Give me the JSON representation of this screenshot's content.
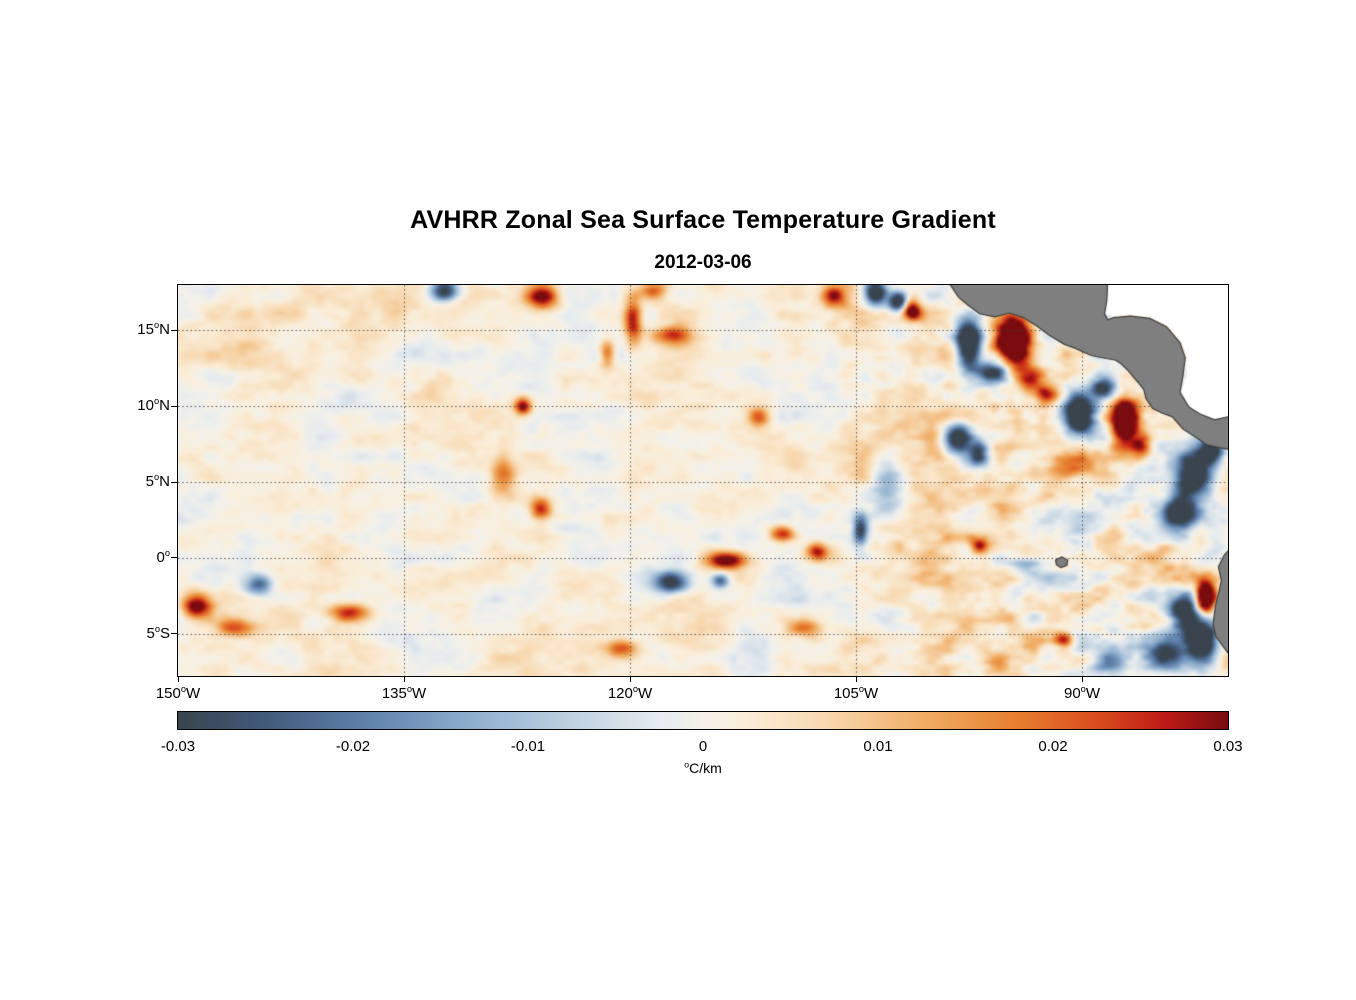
{
  "title": "AVHRR Zonal Sea Surface Temperature Gradient",
  "subtitle": "2012-03-06",
  "colorbar": {
    "ticks": [
      "-0.03",
      "-0.02",
      "-0.01",
      "0",
      "0.01",
      "0.02",
      "0.03"
    ],
    "unit_sup": "o",
    "unit_text": "C/km"
  },
  "chart_data": {
    "type": "heatmap",
    "title": "AVHRR Zonal Sea Surface Temperature Gradient",
    "subtitle": "2012-03-06",
    "units": "°C/km",
    "value_range": [
      -0.03,
      0.03
    ],
    "lon_range": [
      -150,
      -80.31
    ],
    "lat_range": [
      18,
      -7.8
    ],
    "x_ticks": [
      {
        "num": "150",
        "deg": "o",
        "hemi": "W",
        "lon": -150
      },
      {
        "num": "135",
        "deg": "o",
        "hemi": "W",
        "lon": -135
      },
      {
        "num": "120",
        "deg": "o",
        "hemi": "W",
        "lon": -120
      },
      {
        "num": "105",
        "deg": "o",
        "hemi": "W",
        "lon": -105
      },
      {
        "num": "90",
        "deg": "o",
        "hemi": "W",
        "lon": -90
      }
    ],
    "y_ticks": [
      {
        "num": "15",
        "deg": "o",
        "hemi": "N",
        "lat": 15
      },
      {
        "num": "10",
        "deg": "o",
        "hemi": "N",
        "lat": 10
      },
      {
        "num": "5",
        "deg": "o",
        "hemi": "N",
        "lat": 5
      },
      {
        "num": "0",
        "deg": "o",
        "hemi": "",
        "lat": 0
      },
      {
        "num": "5",
        "deg": "o",
        "hemi": "S",
        "lat": -5
      }
    ],
    "grid": "dotted",
    "grid_lons": [
      -135,
      -120,
      -105,
      -90
    ],
    "colorbar_ticks": [
      -0.03,
      -0.02,
      -0.01,
      0,
      0.01,
      0.02,
      0.03
    ],
    "colormap_stops": [
      [
        0.0,
        "#3a444e"
      ],
      [
        0.08,
        "#41597a"
      ],
      [
        0.18,
        "#5f82ab"
      ],
      [
        0.28,
        "#8fafcf"
      ],
      [
        0.38,
        "#c2d3e2"
      ],
      [
        0.46,
        "#e7ecef"
      ],
      [
        0.5,
        "#f4f1ea"
      ],
      [
        0.54,
        "#faeeda"
      ],
      [
        0.62,
        "#f7d7ae"
      ],
      [
        0.72,
        "#f0a95f"
      ],
      [
        0.8,
        "#e67e2e"
      ],
      [
        0.88,
        "#d84b1d"
      ],
      [
        0.94,
        "#bd1a16"
      ],
      [
        1.0,
        "#7a0c0f"
      ]
    ],
    "field": {
      "bias": 0.0018,
      "base_amp": 0.0068,
      "east_amp": 0.0085,
      "east_edges": [
        -113,
        -91
      ],
      "octaves": [
        [
          0.42,
          0.75,
          0.5,
          7
        ],
        [
          0.9,
          1.5,
          0.32,
          13
        ],
        [
          1.9,
          2.9,
          0.18,
          29
        ]
      ],
      "broad": [
        0.18,
        0.3,
        0.004,
        99
      ]
    },
    "features_format": "[lon_degE, lat_degN, radius_lon_deg, radius_lat_deg, peak_value_C_per_km]",
    "features": [
      [
        -132.3,
        17.6,
        0.9,
        0.7,
        -0.035
      ],
      [
        -125.8,
        17.2,
        1.1,
        0.8,
        0.03
      ],
      [
        -118.5,
        17.6,
        0.9,
        0.6,
        0.022
      ],
      [
        -119.8,
        15.6,
        0.6,
        1.7,
        0.028
      ],
      [
        -117.3,
        14.7,
        1.3,
        0.6,
        0.02
      ],
      [
        -121.5,
        13.5,
        0.5,
        0.9,
        0.022
      ],
      [
        -127.1,
        10.0,
        0.55,
        0.55,
        0.03
      ],
      [
        -128.4,
        5.6,
        0.8,
        1.4,
        0.018
      ],
      [
        -125.9,
        3.2,
        0.7,
        0.7,
        0.026
      ],
      [
        -113.5,
        -0.2,
        1.4,
        0.6,
        0.034
      ],
      [
        -114.0,
        -1.5,
        0.6,
        0.5,
        -0.026
      ],
      [
        -109.9,
        1.6,
        0.8,
        0.55,
        0.028
      ],
      [
        -117.3,
        -1.6,
        1.1,
        0.7,
        -0.034
      ],
      [
        -148.8,
        -3.2,
        1.0,
        0.8,
        0.034
      ],
      [
        -146.2,
        -4.6,
        1.3,
        0.6,
        0.02
      ],
      [
        -144.6,
        -1.8,
        0.9,
        0.7,
        -0.026
      ],
      [
        -138.7,
        -3.6,
        1.4,
        0.6,
        0.024
      ],
      [
        -120.6,
        -6.0,
        1.0,
        0.6,
        0.02
      ],
      [
        -108.5,
        -4.6,
        1.1,
        0.6,
        0.018
      ],
      [
        -111.5,
        9.3,
        0.7,
        0.6,
        0.02
      ],
      [
        -104.7,
        1.8,
        0.5,
        1.1,
        -0.03
      ],
      [
        -107.6,
        0.4,
        0.7,
        0.6,
        0.026
      ],
      [
        -103.0,
        5.0,
        1.0,
        2.2,
        -0.016
      ],
      [
        -106.5,
        17.3,
        0.8,
        0.7,
        0.028
      ],
      [
        -103.7,
        17.5,
        0.7,
        0.8,
        -0.045
      ],
      [
        -102.2,
        16.9,
        0.6,
        0.6,
        -0.04
      ],
      [
        -101.3,
        16.4,
        0.6,
        0.7,
        0.035
      ],
      [
        -94.5,
        14.3,
        1.1,
        1.5,
        0.06
      ],
      [
        -97.5,
        14.0,
        0.8,
        1.6,
        -0.05
      ],
      [
        -96.0,
        12.2,
        1.2,
        0.7,
        -0.04
      ],
      [
        -93.4,
        11.8,
        1.0,
        0.9,
        0.028
      ],
      [
        -89.3,
        15.3,
        0.8,
        0.8,
        -0.045
      ],
      [
        -86.6,
        14.3,
        0.6,
        0.7,
        -0.03
      ],
      [
        -85.3,
        13.5,
        0.55,
        0.9,
        0.032
      ],
      [
        -87.2,
        8.9,
        0.85,
        1.5,
        0.06
      ],
      [
        -90.2,
        9.6,
        1.0,
        1.5,
        -0.05
      ],
      [
        -88.6,
        11.2,
        0.8,
        0.6,
        -0.035
      ],
      [
        -92.3,
        10.8,
        0.8,
        0.7,
        0.024
      ],
      [
        -98.3,
        7.8,
        0.9,
        1.1,
        -0.04
      ],
      [
        -96.9,
        6.7,
        0.75,
        0.85,
        -0.035
      ],
      [
        -90.8,
        5.8,
        1.6,
        0.9,
        0.022
      ],
      [
        -86.0,
        7.4,
        0.7,
        0.9,
        0.028
      ],
      [
        -82.5,
        5.5,
        1.3,
        1.6,
        -0.05
      ],
      [
        -83.6,
        3.0,
        1.2,
        1.4,
        -0.038
      ],
      [
        -81.4,
        7.1,
        0.8,
        0.8,
        -0.04
      ],
      [
        -81.8,
        -2.6,
        0.65,
        1.0,
        0.062
      ],
      [
        -83.2,
        -3.4,
        1.0,
        1.2,
        -0.045
      ],
      [
        -82.0,
        -5.5,
        1.0,
        1.4,
        -0.05
      ],
      [
        -84.4,
        -6.4,
        1.2,
        0.9,
        -0.03
      ],
      [
        -88.0,
        -6.8,
        1.0,
        0.9,
        -0.028
      ],
      [
        -91.2,
        -5.4,
        0.7,
        0.5,
        0.026
      ],
      [
        -93.6,
        -0.4,
        1.3,
        0.5,
        -0.016
      ],
      [
        -96.8,
        0.8,
        0.6,
        0.5,
        0.024
      ]
    ],
    "land_color": "#7f7f7f",
    "coast_color": "#404040",
    "nodata_color": "#ffffff",
    "land_polygons": [
      [
        [
          -98.8,
          18.1
        ],
        [
          -98.2,
          17.2
        ],
        [
          -97.6,
          16.7
        ],
        [
          -96.8,
          16.1
        ],
        [
          -95.8,
          15.9
        ],
        [
          -94.8,
          16.15
        ],
        [
          -93.9,
          15.85
        ],
        [
          -93.0,
          15.3
        ],
        [
          -92.2,
          14.7
        ],
        [
          -91.2,
          14.1
        ],
        [
          -90.4,
          13.8
        ],
        [
          -89.4,
          13.35
        ],
        [
          -88.4,
          13.15
        ],
        [
          -87.8,
          13.05
        ],
        [
          -87.4,
          12.8
        ],
        [
          -86.9,
          12.3
        ],
        [
          -86.3,
          11.6
        ],
        [
          -85.9,
          11.1
        ],
        [
          -85.75,
          10.5
        ],
        [
          -85.3,
          9.85
        ],
        [
          -84.7,
          9.55
        ],
        [
          -84.0,
          9.3
        ],
        [
          -83.3,
          8.5
        ],
        [
          -82.6,
          8.05
        ],
        [
          -81.7,
          7.45
        ],
        [
          -80.8,
          7.25
        ],
        [
          -79.9,
          7.1
        ],
        [
          -79.9,
          9.4
        ],
        [
          -81.2,
          9.1
        ],
        [
          -82.2,
          9.5
        ],
        [
          -82.9,
          9.95
        ],
        [
          -83.5,
          10.9
        ],
        [
          -83.3,
          12.0
        ],
        [
          -83.15,
          13.2
        ],
        [
          -83.5,
          14.2
        ],
        [
          -84.4,
          15.25
        ],
        [
          -85.5,
          15.8
        ],
        [
          -86.8,
          15.95
        ],
        [
          -87.9,
          15.85
        ],
        [
          -88.3,
          15.7
        ],
        [
          -88.5,
          16.1
        ],
        [
          -88.35,
          17.0
        ],
        [
          -88.3,
          18.1
        ]
      ],
      [
        [
          -79.9,
          0.9
        ],
        [
          -80.55,
          0.2
        ],
        [
          -80.95,
          -0.6
        ],
        [
          -80.75,
          -1.5
        ],
        [
          -80.9,
          -2.2
        ],
        [
          -81.15,
          -3.2
        ],
        [
          -81.3,
          -4.4
        ],
        [
          -81.1,
          -5.2
        ],
        [
          -80.6,
          -5.9
        ],
        [
          -80.15,
          -6.5
        ],
        [
          -79.9,
          -6.9
        ]
      ],
      [
        [
          -91.75,
          -0.15
        ],
        [
          -91.35,
          0.05
        ],
        [
          -90.95,
          -0.15
        ],
        [
          -91.0,
          -0.5
        ],
        [
          -91.4,
          -0.65
        ],
        [
          -91.7,
          -0.45
        ]
      ]
    ],
    "nodata_polygons": [
      [
        [
          -88.3,
          18.1
        ],
        [
          -88.45,
          16.9
        ],
        [
          -88.55,
          16.1
        ],
        [
          -88.0,
          15.95
        ],
        [
          -86.8,
          16.05
        ],
        [
          -85.5,
          15.9
        ],
        [
          -84.35,
          15.35
        ],
        [
          -83.4,
          14.3
        ],
        [
          -83.05,
          13.2
        ],
        [
          -83.05,
          12.0
        ],
        [
          -83.4,
          10.95
        ],
        [
          -82.8,
          9.9
        ],
        [
          -82.1,
          9.45
        ],
        [
          -81.1,
          9.2
        ],
        [
          -79.9,
          9.3
        ],
        [
          -79.9,
          18.1
        ]
      ]
    ]
  }
}
